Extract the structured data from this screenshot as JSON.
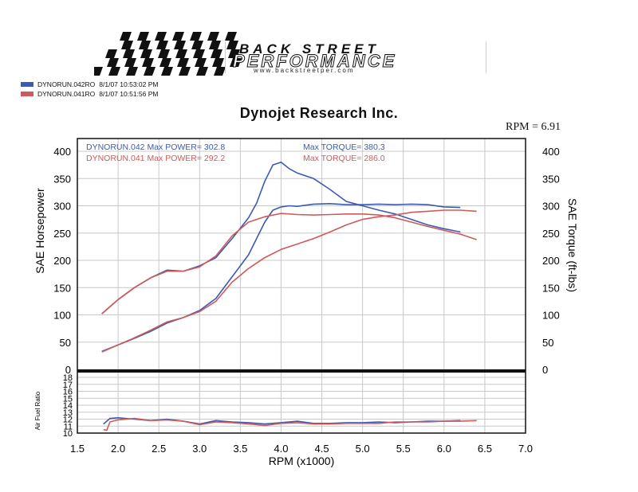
{
  "brand": {
    "line1": "BACK STREET",
    "line2": "PERFORMANCE",
    "url": "www.backstreetper.com"
  },
  "legend": [
    {
      "label": "DYNORUN.042RO",
      "date": "8/1/07 10:53:02 PM",
      "color": "#3b5bb3"
    },
    {
      "label": "DYNORUN.041RO",
      "date": "8/1/07 10:51:56 PM",
      "color": "#d05a5a"
    }
  ],
  "title": "Dynojet  Research  Inc.",
  "rpm_note": "RPM = 6.91",
  "annotations": {
    "run042_power": "DYNORUN.042  Max POWER= 302.8",
    "run041_power": "DYNORUN.041  Max POWER= 292.2",
    "run042_torque": "Max TORQUE= 380.3",
    "run041_torque": "Max TORQUE= 286.0"
  },
  "chart_data": [
    {
      "type": "line",
      "title": "Dynojet  Research  Inc.",
      "xlabel": "RPM (x1000)",
      "ylabel": "SAE Horsepower",
      "y2label": "SAE Torque (ft-lbs)",
      "xlim": [
        1.5,
        7.0
      ],
      "ylim": [
        0,
        400
      ],
      "y2lim": [
        0,
        400
      ],
      "xticks": [
        "1.5",
        "2.0",
        "2.5",
        "3.0",
        "3.5",
        "4.0",
        "4.5",
        "5.0",
        "5.5",
        "6.0",
        "6.5",
        "7.0"
      ],
      "yticks": [
        "0",
        "50",
        "100",
        "150",
        "200",
        "250",
        "300",
        "350",
        "400"
      ],
      "y2ticks": [
        "0",
        "50",
        "100",
        "150",
        "200",
        "250",
        "300",
        "350",
        "400"
      ],
      "grid": true,
      "series": [
        {
          "name": "DYNORUN.042",
          "measure": "power",
          "color": "#3b5bb3",
          "x": [
            1.8,
            2.0,
            2.2,
            2.4,
            2.6,
            2.8,
            3.0,
            3.2,
            3.4,
            3.6,
            3.8,
            3.9,
            4.0,
            4.1,
            4.2,
            4.4,
            4.6,
            4.8,
            5.0,
            5.2,
            5.4,
            5.6,
            5.8,
            6.0,
            6.2
          ],
          "y": [
            33,
            45,
            57,
            70,
            85,
            95,
            108,
            130,
            170,
            210,
            270,
            292,
            298,
            300,
            299,
            303,
            304,
            302,
            302,
            303,
            302,
            303,
            302,
            298,
            297
          ]
        },
        {
          "name": "DYNORUN.042",
          "measure": "torque",
          "color": "#3b5bb3",
          "x": [
            1.8,
            2.0,
            2.2,
            2.4,
            2.6,
            2.8,
            3.0,
            3.2,
            3.4,
            3.6,
            3.7,
            3.8,
            3.9,
            4.0,
            4.1,
            4.2,
            4.4,
            4.6,
            4.8,
            5.0,
            5.2,
            5.4,
            5.6,
            5.8,
            6.0,
            6.2
          ],
          "y": [
            102,
            128,
            150,
            168,
            182,
            180,
            190,
            205,
            240,
            278,
            305,
            345,
            375,
            380,
            368,
            360,
            350,
            330,
            308,
            300,
            292,
            285,
            275,
            265,
            258,
            252
          ]
        },
        {
          "name": "DYNORUN.041",
          "measure": "power",
          "color": "#d05a5a",
          "x": [
            1.8,
            2.0,
            2.2,
            2.4,
            2.6,
            2.8,
            3.0,
            3.2,
            3.4,
            3.6,
            3.8,
            4.0,
            4.2,
            4.4,
            4.6,
            4.8,
            5.0,
            5.2,
            5.4,
            5.6,
            5.8,
            6.0,
            6.2,
            6.4
          ],
          "y": [
            32,
            45,
            58,
            72,
            87,
            95,
            106,
            125,
            160,
            185,
            205,
            220,
            230,
            240,
            252,
            265,
            275,
            280,
            283,
            288,
            290,
            292,
            292,
            290
          ]
        },
        {
          "name": "DYNORUN.041",
          "measure": "torque",
          "color": "#d05a5a",
          "x": [
            1.8,
            2.0,
            2.2,
            2.4,
            2.6,
            2.8,
            3.0,
            3.2,
            3.4,
            3.6,
            3.8,
            4.0,
            4.2,
            4.4,
            4.6,
            4.8,
            5.0,
            5.2,
            5.4,
            5.6,
            5.8,
            6.0,
            6.2,
            6.4
          ],
          "y": [
            102,
            128,
            150,
            168,
            180,
            180,
            188,
            208,
            245,
            270,
            280,
            286,
            284,
            283,
            284,
            285,
            285,
            283,
            278,
            270,
            262,
            255,
            248,
            238
          ]
        }
      ]
    },
    {
      "type": "line",
      "ylabel": "Air Fuel Ratio",
      "xlabel": "RPM (x1000)",
      "xlim": [
        1.5,
        7.0
      ],
      "ylim": [
        10,
        18
      ],
      "yticks": [
        "10",
        "11",
        "12",
        "13",
        "14",
        "15",
        "16",
        "17",
        "18"
      ],
      "grid": true,
      "series": [
        {
          "name": "DYNORUN.042",
          "color": "#3b5bb3",
          "x": [
            1.82,
            1.9,
            2.0,
            2.2,
            2.4,
            2.6,
            2.8,
            3.0,
            3.2,
            3.4,
            3.6,
            3.8,
            4.0,
            4.2,
            4.4,
            4.6,
            4.8,
            5.0,
            5.2,
            5.4,
            5.6,
            5.8,
            6.0,
            6.2
          ],
          "y": [
            11.3,
            12.1,
            12.2,
            12.0,
            11.8,
            12.0,
            11.7,
            11.3,
            11.8,
            11.6,
            11.5,
            11.3,
            11.5,
            11.7,
            11.4,
            11.4,
            11.5,
            11.5,
            11.6,
            11.5,
            11.6,
            11.7,
            11.7,
            11.8
          ]
        },
        {
          "name": "DYNORUN.041",
          "color": "#d05a5a",
          "x": [
            1.82,
            1.86,
            1.9,
            2.0,
            2.2,
            2.4,
            2.6,
            2.8,
            3.0,
            3.2,
            3.4,
            3.6,
            3.8,
            4.0,
            4.2,
            4.4,
            4.6,
            4.8,
            5.0,
            5.2,
            5.4,
            5.6,
            5.8,
            6.0,
            6.2,
            6.4
          ],
          "y": [
            10.5,
            10.4,
            11.6,
            11.9,
            12.1,
            11.8,
            11.9,
            11.7,
            11.2,
            11.6,
            11.5,
            11.3,
            11.1,
            11.4,
            11.5,
            11.3,
            11.3,
            11.4,
            11.4,
            11.4,
            11.6,
            11.6,
            11.6,
            11.7,
            11.7,
            11.8
          ]
        }
      ]
    }
  ]
}
